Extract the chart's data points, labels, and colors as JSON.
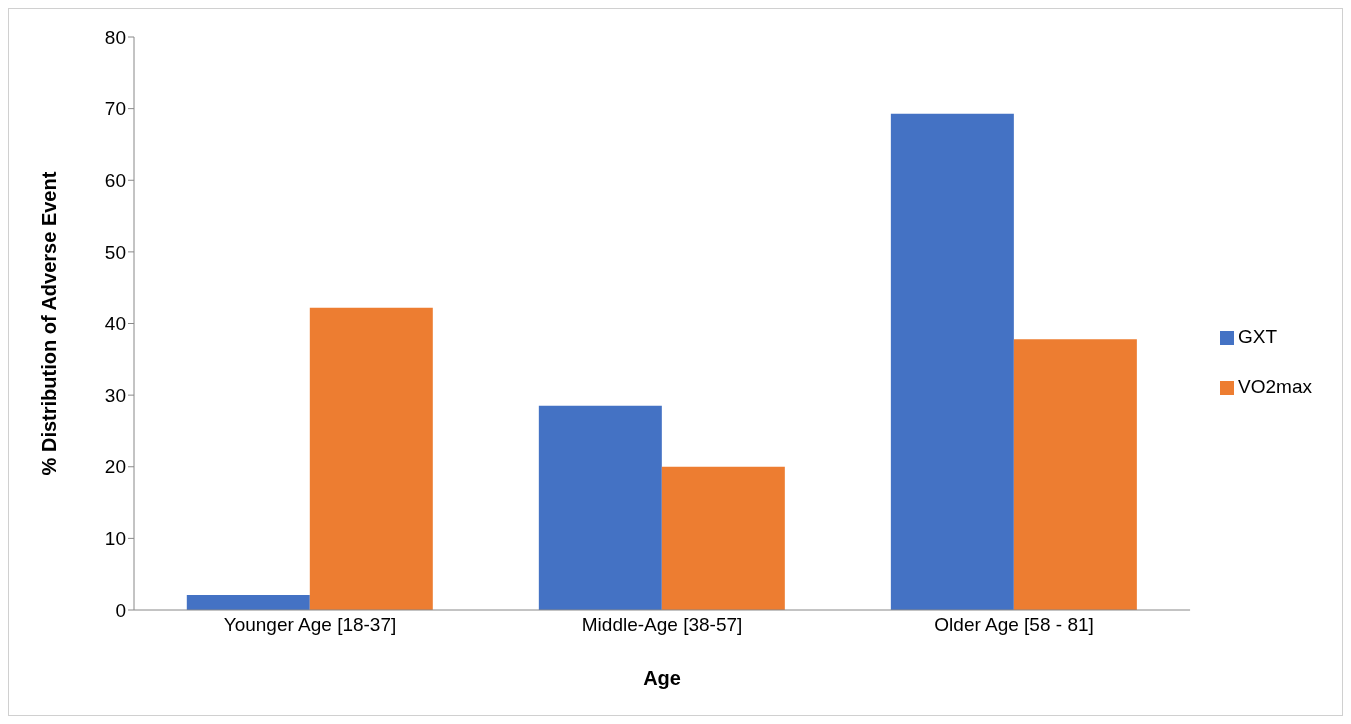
{
  "chart_data": {
    "type": "bar",
    "xlabel": "Age",
    "ylabel": "% Distribution of Adverse Event",
    "categories": [
      "Younger Age [18-37]",
      "Middle-Age [38-57]",
      "Older Age [58 - 81]"
    ],
    "series": [
      {
        "name": "GXT",
        "color": "#4472c4",
        "values": [
          2.1,
          28.5,
          69.3
        ]
      },
      {
        "name": "VO2max",
        "color": "#ed7d31",
        "values": [
          42.2,
          20.0,
          37.8
        ]
      }
    ],
    "ylim": [
      0,
      80
    ],
    "yticks": [
      0,
      10,
      20,
      30,
      40,
      50,
      60,
      70,
      80
    ],
    "grid": false,
    "legend": "right"
  }
}
